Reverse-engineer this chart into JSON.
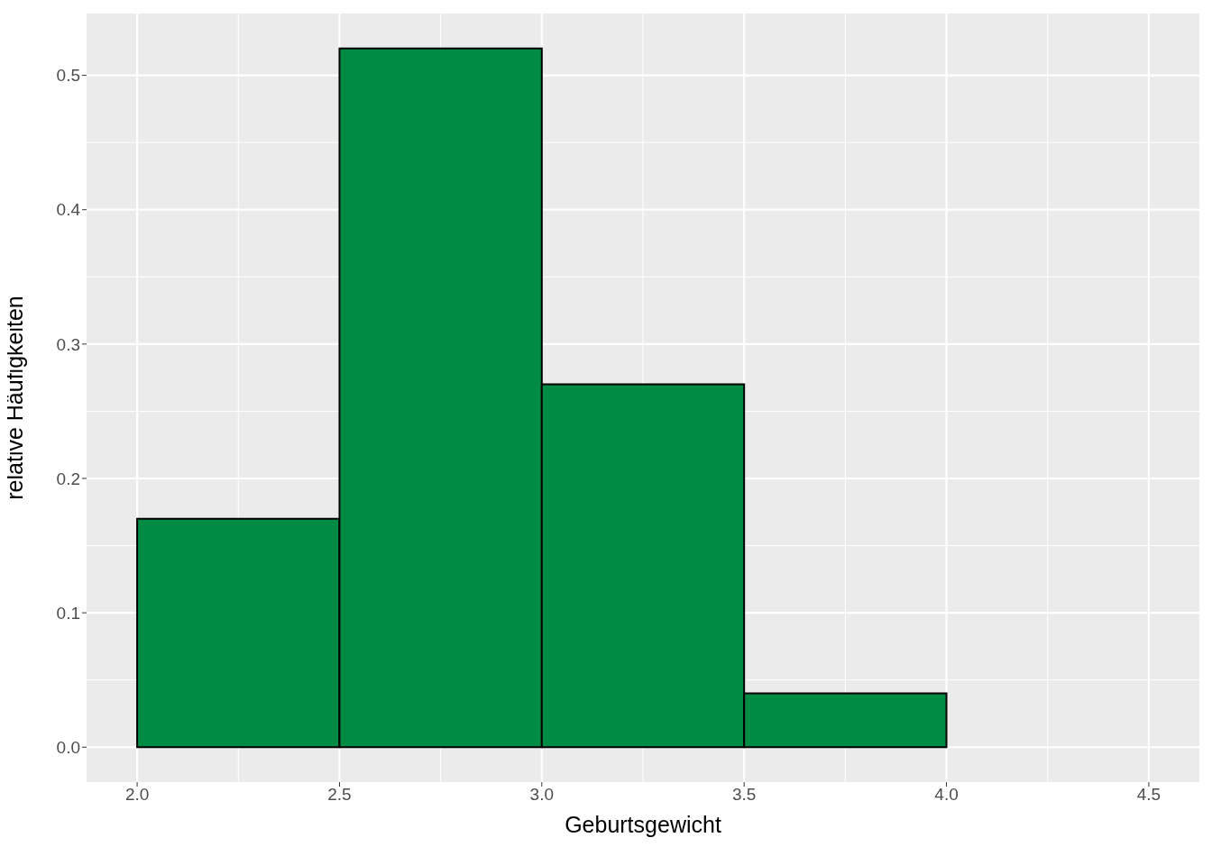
{
  "chart_data": {
    "type": "histogram",
    "xlabel": "Geburtsgewicht",
    "ylabel": "relative Häufigkeiten",
    "bins": [
      2.0,
      2.5,
      3.0,
      3.5,
      4.0,
      4.5
    ],
    "values": [
      0.17,
      0.52,
      0.27,
      0.04,
      0
    ],
    "color": "#008b45",
    "xlim": [
      1.875,
      4.625
    ],
    "xticks": [
      {
        "value": 2,
        "label": "2.0"
      },
      2.5,
      {
        "value": 3,
        "label": "3.0"
      },
      3.5,
      {
        "value": 4,
        "label": "4.0"
      },
      4.5
    ],
    "ylim": [
      -0.026,
      0.546
    ],
    "yticks": [
      {
        "value": 0,
        "label": "0.0"
      },
      0.1,
      0.2,
      0.3,
      0.4,
      0.5
    ],
    "grid": true
  }
}
